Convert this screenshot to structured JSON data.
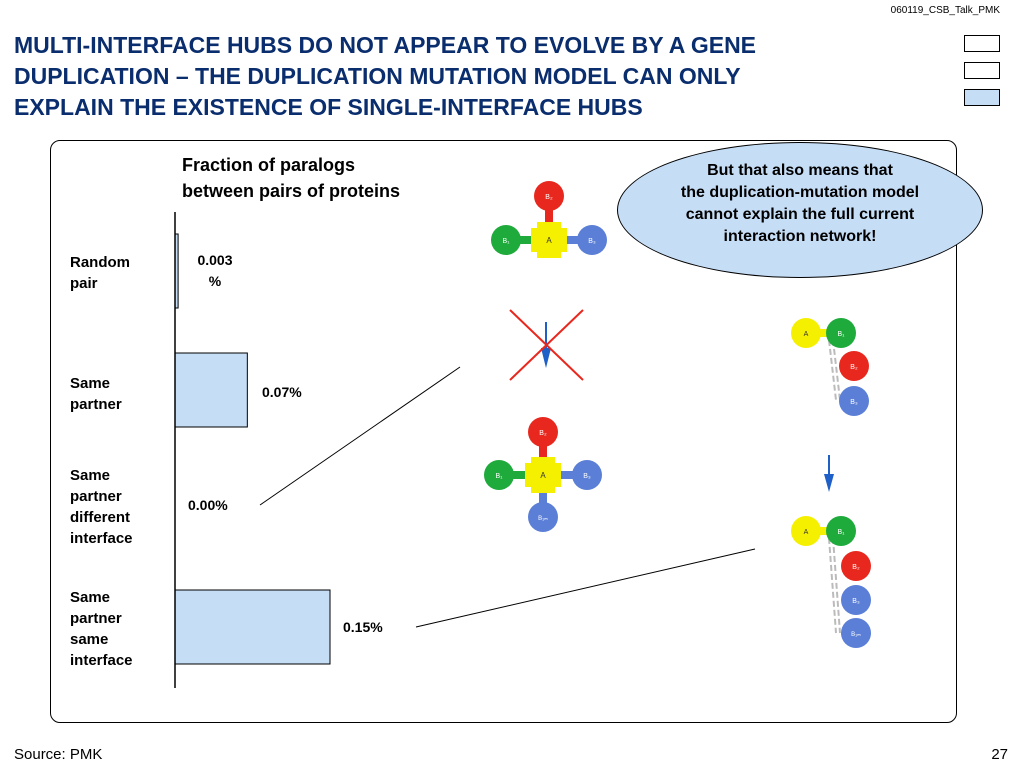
{
  "header": {
    "doc_id": "060119_CSB_Talk_PMK"
  },
  "title": {
    "line1": "MULTI-INTERFACE HUBS DO NOT APPEAR TO EVOLVE BY A GENE",
    "line2": "DUPLICATION – THE DUPLICATION MUTATION MODEL CAN ONLY",
    "line3": "EXPLAIN THE EXISTENCE OF SINGLE-INTERFACE HUBS"
  },
  "nav": {
    "boxes": 3,
    "active_index": 2
  },
  "colors": {
    "title": "#0a2d6e",
    "bar_fill": "#c6ddf6",
    "node_red": "#e8281e",
    "node_green": "#1faa3c",
    "node_yellow": "#f5f000",
    "node_blue": "#5b7fd6",
    "arrow_blue": "#1f5fc8",
    "cross_red": "#e8281e"
  },
  "chart": {
    "title_line1": "Fraction of paralogs",
    "title_line2": "between pairs of proteins"
  },
  "chart_data": {
    "type": "bar",
    "orientation": "horizontal",
    "title": "Fraction of paralogs between pairs of proteins",
    "categories": [
      "Random pair",
      "Same partner",
      "Same partner different interface",
      "Same partner same interface"
    ],
    "values": [
      0.003,
      0.07,
      0.0,
      0.15
    ],
    "value_labels": [
      "0.003 %",
      "0.07%",
      "0.00%",
      "0.15%"
    ],
    "unit": "%",
    "xlim": [
      0,
      0.2
    ]
  },
  "categories": {
    "random": {
      "line1": "Random",
      "line2": "pair"
    },
    "same": {
      "line1": "Same",
      "line2": "partner"
    },
    "diff": {
      "line1": "Same",
      "line2": "partner",
      "line3": "different",
      "line4": "interface"
    },
    "same_iface": {
      "line1": "Same",
      "line2": "partner",
      "line3": "same",
      "line4": "interface"
    }
  },
  "values": {
    "random_1": "0.003",
    "random_2": "%",
    "same": "0.07%",
    "diff": "0.00%",
    "same_iface": "0.15%"
  },
  "callout": {
    "line1": "But that also means that",
    "line2": "the duplication-mutation model",
    "line3": "cannot explain the full current",
    "line4": "interaction network!"
  },
  "diagram": {
    "hub_top": {
      "center": "A",
      "top": "B₂",
      "left": "B₁",
      "right": "B₃"
    },
    "hub_bottom": {
      "center": "A",
      "top": "B₂",
      "left": "B₁",
      "right": "B₃",
      "bottom": "B₁ₘ"
    },
    "chain_top": {
      "a": "A",
      "b1": "B₁",
      "b2": "B₂",
      "b3": "B₃"
    },
    "chain_bottom": {
      "a": "A",
      "b1": "B₁",
      "b2": "B₂",
      "b3": "B₃",
      "b4": "B₁ₘ"
    }
  },
  "footer": {
    "source": "Source: PMK",
    "page": "27"
  }
}
